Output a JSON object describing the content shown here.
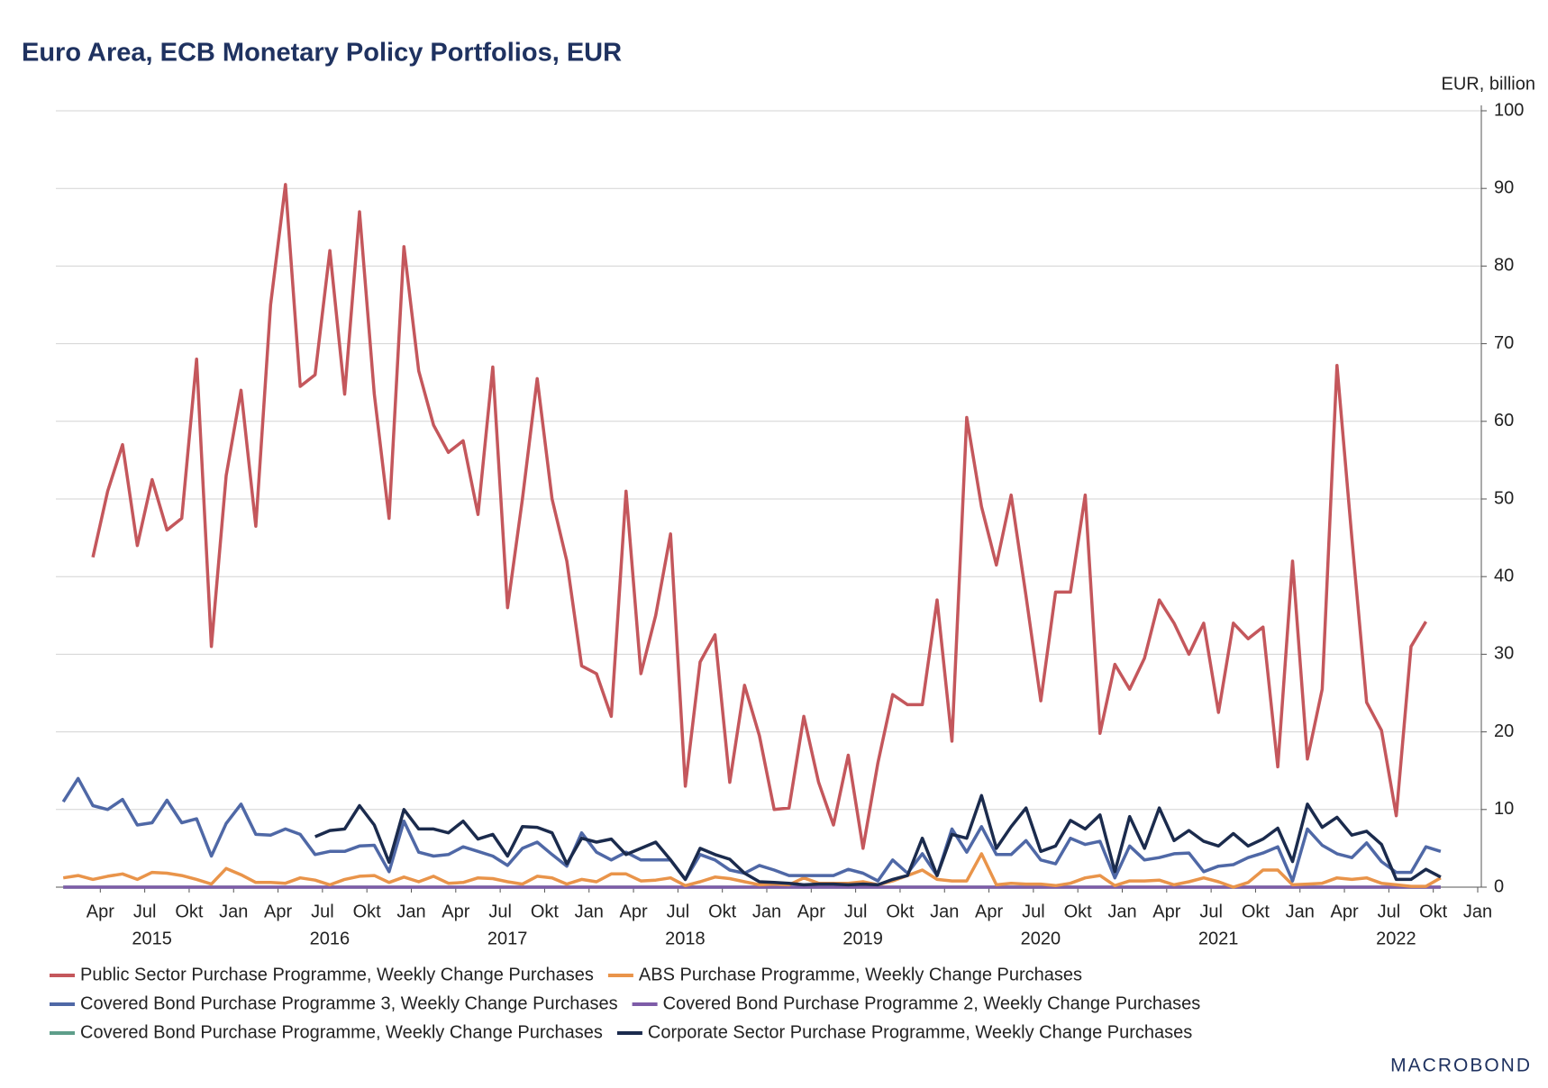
{
  "chart_data": {
    "type": "line",
    "title": "Euro Area, ECB Monetary Policy Portfolios, EUR",
    "y_unit": "EUR, billion",
    "logo": "MACROBOND",
    "x": [
      "2015-01",
      "2015-02",
      "2015-03",
      "2015-04",
      "2015-05",
      "2015-06",
      "2015-07",
      "2015-08",
      "2015-09",
      "2015-10",
      "2015-11",
      "2015-12",
      "2016-01",
      "2016-02",
      "2016-03",
      "2016-04",
      "2016-05",
      "2016-06",
      "2016-07",
      "2016-08",
      "2016-09",
      "2016-10",
      "2016-11",
      "2016-12",
      "2017-01",
      "2017-02",
      "2017-03",
      "2017-04",
      "2017-05",
      "2017-06",
      "2017-07",
      "2017-08",
      "2017-09",
      "2017-10",
      "2017-11",
      "2017-12",
      "2018-01",
      "2018-02",
      "2018-03",
      "2018-04",
      "2018-05",
      "2018-06",
      "2018-07",
      "2018-08",
      "2018-09",
      "2018-10",
      "2018-11",
      "2018-12",
      "2019-01",
      "2019-02",
      "2019-03",
      "2019-04",
      "2019-05",
      "2019-06",
      "2019-07",
      "2019-08",
      "2019-09",
      "2019-10",
      "2019-11",
      "2019-12",
      "2020-01",
      "2020-02",
      "2020-03",
      "2020-04",
      "2020-05",
      "2020-06",
      "2020-07",
      "2020-08",
      "2020-09",
      "2020-10",
      "2020-11",
      "2020-12",
      "2021-01",
      "2021-02",
      "2021-03",
      "2021-04",
      "2021-05",
      "2021-06",
      "2021-07",
      "2021-08",
      "2021-09",
      "2021-10",
      "2021-11",
      "2021-12",
      "2022-01",
      "2022-02",
      "2022-03",
      "2022-04",
      "2022-05",
      "2022-06",
      "2022-07",
      "2022-08",
      "2022-09",
      "2022-10"
    ],
    "xlim": [
      "2015-01",
      "2023-01"
    ],
    "xticks": [
      {
        "value": "2015-04",
        "label": "Apr"
      },
      {
        "value": "2015-07",
        "label": "Jul"
      },
      {
        "value": "2015-10",
        "label": "Okt"
      },
      {
        "value": "2016-01",
        "label": "Jan"
      },
      {
        "value": "2016-04",
        "label": "Apr"
      },
      {
        "value": "2016-07",
        "label": "Jul"
      },
      {
        "value": "2016-10",
        "label": "Okt"
      },
      {
        "value": "2017-01",
        "label": "Jan"
      },
      {
        "value": "2017-04",
        "label": "Apr"
      },
      {
        "value": "2017-07",
        "label": "Jul"
      },
      {
        "value": "2017-10",
        "label": "Okt"
      },
      {
        "value": "2018-01",
        "label": "Jan"
      },
      {
        "value": "2018-04",
        "label": "Apr"
      },
      {
        "value": "2018-07",
        "label": "Jul"
      },
      {
        "value": "2018-10",
        "label": "Okt"
      },
      {
        "value": "2019-01",
        "label": "Jan"
      },
      {
        "value": "2019-04",
        "label": "Apr"
      },
      {
        "value": "2019-07",
        "label": "Jul"
      },
      {
        "value": "2019-10",
        "label": "Okt"
      },
      {
        "value": "2020-01",
        "label": "Jan"
      },
      {
        "value": "2020-04",
        "label": "Apr"
      },
      {
        "value": "2020-07",
        "label": "Jul"
      },
      {
        "value": "2020-10",
        "label": "Okt"
      },
      {
        "value": "2021-01",
        "label": "Jan"
      },
      {
        "value": "2021-04",
        "label": "Apr"
      },
      {
        "value": "2021-07",
        "label": "Jul"
      },
      {
        "value": "2021-10",
        "label": "Okt"
      },
      {
        "value": "2022-01",
        "label": "Jan"
      },
      {
        "value": "2022-04",
        "label": "Apr"
      },
      {
        "value": "2022-07",
        "label": "Jul"
      },
      {
        "value": "2022-10",
        "label": "Okt"
      },
      {
        "value": "2023-01",
        "label": "Jan"
      }
    ],
    "year_ticks": [
      {
        "value": "2015-07",
        "label": "2015"
      },
      {
        "value": "2016-07",
        "label": "2016"
      },
      {
        "value": "2017-07",
        "label": "2017"
      },
      {
        "value": "2018-07",
        "label": "2018"
      },
      {
        "value": "2019-07",
        "label": "2019"
      },
      {
        "value": "2020-07",
        "label": "2020"
      },
      {
        "value": "2021-07",
        "label": "2021"
      },
      {
        "value": "2022-07",
        "label": "2022"
      }
    ],
    "ylim": [
      0,
      100
    ],
    "yticks": [
      0,
      10,
      20,
      30,
      40,
      50,
      60,
      70,
      80,
      90,
      100
    ],
    "grid": true,
    "series": [
      {
        "name": "Public Sector Purchase Programme, Weekly Change Purchases",
        "color": "#c4575c",
        "values": [
          null,
          null,
          42.5,
          51,
          57,
          44,
          52.5,
          46,
          47.5,
          68,
          31,
          53,
          64,
          46.5,
          75,
          90.5,
          64.5,
          66,
          82,
          63.5,
          87,
          63.5,
          47.5,
          82.5,
          66.5,
          59.5,
          56,
          57.5,
          48,
          67,
          36,
          50,
          65.5,
          50,
          42,
          28.5,
          27.5,
          22,
          51,
          27.5,
          35,
          45.5,
          13,
          29,
          32.5,
          13.5,
          26,
          19.5,
          10,
          10.2,
          22,
          13.5,
          8,
          17,
          5,
          16,
          24.8,
          23.5,
          23.5,
          37,
          18.8,
          60.5,
          49,
          41.5,
          50.5,
          37.5,
          24,
          38,
          38,
          50.5,
          19.8,
          28.7,
          25.5,
          29.5,
          37,
          34,
          30,
          34,
          22.5,
          34,
          32,
          33.5,
          15.5,
          42,
          16.5,
          25.5,
          67.2,
          45,
          23.8,
          20.2,
          9.2,
          31,
          34.2,
          null
        ]
      },
      {
        "name": "ABS Purchase Programme, Weekly Change Purchases",
        "color": "#e9944a",
        "values": [
          1.2,
          1.5,
          1,
          1.4,
          1.7,
          1,
          1.9,
          1.8,
          1.5,
          1,
          0.4,
          2.4,
          1.6,
          0.6,
          0.6,
          0.5,
          1.2,
          0.9,
          0.3,
          1,
          1.4,
          1.5,
          0.6,
          1.3,
          0.7,
          1.4,
          0.5,
          0.6,
          1.2,
          1.1,
          0.7,
          0.4,
          1.4,
          1.2,
          0.4,
          1,
          0.7,
          1.7,
          1.7,
          0.8,
          0.9,
          1.2,
          0.2,
          0.7,
          1.3,
          1.1,
          0.7,
          0.3,
          0.4,
          0.3,
          1.2,
          0.5,
          0.5,
          0.5,
          0.7,
          0.3,
          0.8,
          1.5,
          2.2,
          1,
          0.8,
          0.8,
          4.3,
          0.3,
          0.5,
          0.4,
          0.4,
          0.2,
          0.5,
          1.2,
          1.5,
          0.2,
          0.8,
          0.8,
          0.9,
          0.3,
          0.7,
          1.2,
          0.7,
          0,
          0.6,
          2.2,
          2.2,
          0.3,
          0.4,
          0.5,
          1.2,
          1,
          1.2,
          0.5,
          0.3,
          0.1,
          0.1,
          1.2
        ]
      },
      {
        "name": "Covered Bond Purchase Programme 3, Weekly Change Purchases",
        "color": "#4f68a6",
        "values": [
          11,
          14,
          10.5,
          10,
          11.3,
          8,
          8.3,
          11.2,
          8.3,
          8.8,
          4,
          8.2,
          10.7,
          6.8,
          6.7,
          7.5,
          6.8,
          4.2,
          4.6,
          4.6,
          5.3,
          5.4,
          2,
          8.5,
          4.5,
          4,
          4.2,
          5.2,
          4.6,
          4,
          2.8,
          5,
          5.8,
          4.2,
          2.7,
          7,
          4.5,
          3.5,
          4.5,
          3.5,
          3.5,
          3.5,
          1,
          4.2,
          3.5,
          2.2,
          1.8,
          2.8,
          2.2,
          1.5,
          1.5,
          1.5,
          1.5,
          2.3,
          1.8,
          0.8,
          3.5,
          1.8,
          4.3,
          1.5,
          7.5,
          4.5,
          7.8,
          4.2,
          4.2,
          6,
          3.5,
          3,
          6.3,
          5.5,
          5.9,
          1.2,
          5.3,
          3.5,
          3.8,
          4.3,
          4.4,
          2,
          2.7,
          2.9,
          3.8,
          4.4,
          5.2,
          0.8,
          7.5,
          5.4,
          4.3,
          3.8,
          5.7,
          3.3,
          1.9,
          1.9,
          5.2,
          4.6
        ]
      },
      {
        "name": "Covered Bond Purchase Programme 2, Weekly Change Purchases",
        "color": "#7e5ca8",
        "values": [
          0,
          0,
          0,
          0,
          0,
          0,
          0,
          0,
          0,
          0,
          0,
          0,
          0,
          0,
          0,
          0,
          0,
          0,
          0,
          0,
          0,
          0,
          0,
          0,
          0,
          0,
          0,
          0,
          0,
          0,
          0,
          0,
          0,
          0,
          0,
          0,
          0,
          0,
          0,
          0,
          0,
          0,
          0,
          0,
          0,
          0,
          0,
          0,
          0,
          0,
          0,
          0,
          0,
          0,
          0,
          0,
          0,
          0,
          0,
          0,
          0,
          0,
          0,
          0,
          0,
          0,
          0,
          0,
          0,
          0,
          0,
          0,
          0,
          0,
          0,
          0,
          0,
          0,
          0,
          0,
          0,
          0,
          0,
          0,
          0,
          0,
          0,
          0,
          0,
          0,
          0,
          0,
          0,
          0
        ]
      },
      {
        "name": "Covered Bond Purchase Programme, Weekly Change Purchases",
        "color": "#5e9e8a",
        "values": [
          0,
          0,
          0,
          0,
          0,
          0,
          0,
          0,
          0,
          0,
          0,
          0,
          0,
          0,
          0,
          0,
          0,
          0,
          0,
          0,
          0,
          0,
          0,
          0,
          0,
          0,
          0,
          0,
          0,
          0,
          0,
          0,
          0,
          0,
          0,
          0,
          0,
          0,
          0,
          0,
          0,
          0,
          0,
          0,
          0,
          0,
          0,
          0,
          0,
          0,
          0,
          0,
          0,
          0,
          0,
          0,
          0,
          0,
          0,
          0,
          0,
          0,
          0,
          0,
          0,
          0,
          0,
          0,
          0,
          0,
          0,
          0,
          0,
          0,
          0,
          0,
          0,
          0,
          0,
          0,
          0,
          0,
          0,
          0,
          0,
          0,
          0,
          0,
          0,
          0,
          0,
          0,
          0,
          0
        ]
      },
      {
        "name": "Corporate Sector Purchase Programme, Weekly Change Purchases",
        "color": "#1b2b4d",
        "values": [
          null,
          null,
          null,
          null,
          null,
          null,
          null,
          null,
          null,
          null,
          null,
          null,
          null,
          null,
          null,
          null,
          null,
          6.5,
          7.3,
          7.5,
          10.5,
          8,
          3.2,
          10,
          7.5,
          7.5,
          7,
          8.5,
          6.2,
          6.8,
          4,
          7.8,
          7.7,
          7,
          3,
          6.3,
          5.8,
          6.2,
          4.2,
          5,
          5.8,
          3.5,
          1,
          5,
          4.2,
          3.6,
          1.8,
          0.7,
          0.6,
          0.5,
          0.3,
          0.4,
          0.4,
          0.3,
          0.4,
          0.3,
          1,
          1.5,
          6.3,
          1.5,
          6.8,
          6.3,
          11.8,
          5,
          7.8,
          10.2,
          4.6,
          5.3,
          8.6,
          7.5,
          9.3,
          2,
          9.1,
          5,
          10.2,
          6,
          7.3,
          5.9,
          5.3,
          6.9,
          5.3,
          6.2,
          7.6,
          3.3,
          10.7,
          7.7,
          9,
          6.7,
          7.2,
          5.5,
          1,
          1,
          2.3,
          1.3
        ]
      }
    ]
  }
}
